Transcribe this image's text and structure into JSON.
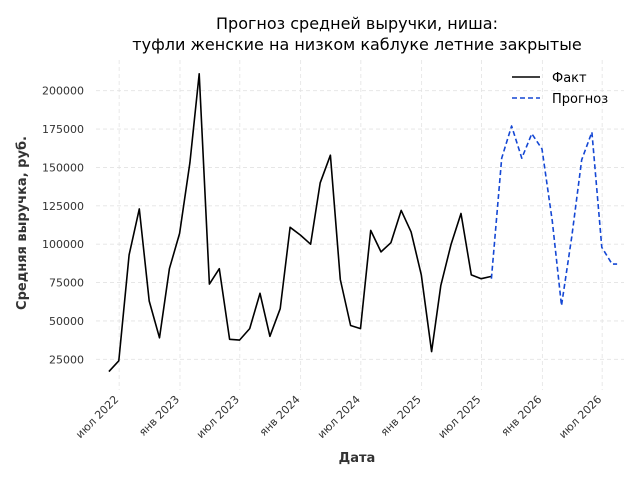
{
  "chart_data": {
    "type": "line",
    "title": [
      "Прогноз средней выручки, ниша:",
      "туфли женские на низком каблуке летние закрытые"
    ],
    "xlabel": "Дата",
    "ylabel": "Средняя выручка, руб.",
    "ylim": [
      5000,
      220000
    ],
    "xlim": [
      "2022-04-22",
      "2026-09-05"
    ],
    "yticks": [
      25000,
      50000,
      75000,
      100000,
      125000,
      150000,
      175000,
      200000
    ],
    "ytick_labels": [
      "25000",
      "50000",
      "75000",
      "100000",
      "125000",
      "150000",
      "175000",
      "200000"
    ],
    "xticks": [
      {
        "date": "2022-07-01",
        "label": "июл 2022"
      },
      {
        "date": "2023-01-01",
        "label": "янв 2023"
      },
      {
        "date": "2023-07-01",
        "label": "июл 2023"
      },
      {
        "date": "2024-01-01",
        "label": "янв 2024"
      },
      {
        "date": "2024-07-01",
        "label": "июл 2024"
      },
      {
        "date": "2025-01-01",
        "label": "янв 2025"
      },
      {
        "date": "2025-07-01",
        "label": "июл 2025"
      },
      {
        "date": "2026-01-01",
        "label": "янв 2026"
      },
      {
        "date": "2026-07-01",
        "label": "июл 2026"
      }
    ],
    "grid": true,
    "legend_position": "top-right",
    "series": [
      {
        "name": "Факт",
        "style": "solid",
        "color": "#000000",
        "x": [
          "2022-05-31",
          "2022-06-30",
          "2022-07-31",
          "2022-08-31",
          "2022-09-30",
          "2022-10-31",
          "2022-11-30",
          "2022-12-31",
          "2023-01-31",
          "2023-02-28",
          "2023-03-31",
          "2023-04-30",
          "2023-05-31",
          "2023-06-30",
          "2023-07-31",
          "2023-08-31",
          "2023-09-30",
          "2023-10-31",
          "2023-11-30",
          "2023-12-31",
          "2024-01-31",
          "2024-02-29",
          "2024-03-31",
          "2024-04-30",
          "2024-05-31",
          "2024-06-30",
          "2024-07-31",
          "2024-08-31",
          "2024-09-30",
          "2024-10-31",
          "2024-11-30",
          "2024-12-31",
          "2025-01-31",
          "2025-02-28",
          "2025-03-31",
          "2025-04-30",
          "2025-05-31",
          "2025-06-30",
          "2025-07-31"
        ],
        "y": [
          17000,
          24000,
          93000,
          123000,
          63000,
          39000,
          84000,
          107000,
          153000,
          211000,
          74000,
          84000,
          38000,
          37500,
          45000,
          68000,
          40000,
          58000,
          111000,
          106000,
          100000,
          140000,
          158000,
          77000,
          47000,
          45000,
          109000,
          95000,
          101000,
          122000,
          108000,
          80000,
          30000,
          73000,
          100000,
          120000,
          80000,
          77500,
          79000
        ]
      },
      {
        "name": "Прогноз",
        "style": "dashed",
        "color": "#1447d4",
        "x": [
          "2025-07-31",
          "2025-08-31",
          "2025-09-30",
          "2025-10-31",
          "2025-11-30",
          "2025-12-31",
          "2026-01-31",
          "2026-02-28",
          "2026-03-31",
          "2026-04-30",
          "2026-05-31",
          "2026-06-30",
          "2026-07-31",
          "2026-08-31"
        ],
        "y": [
          77500,
          156000,
          177000,
          156000,
          172000,
          162000,
          115000,
          60000,
          105000,
          155000,
          173000,
          98000,
          87000,
          null
        ]
      }
    ]
  }
}
